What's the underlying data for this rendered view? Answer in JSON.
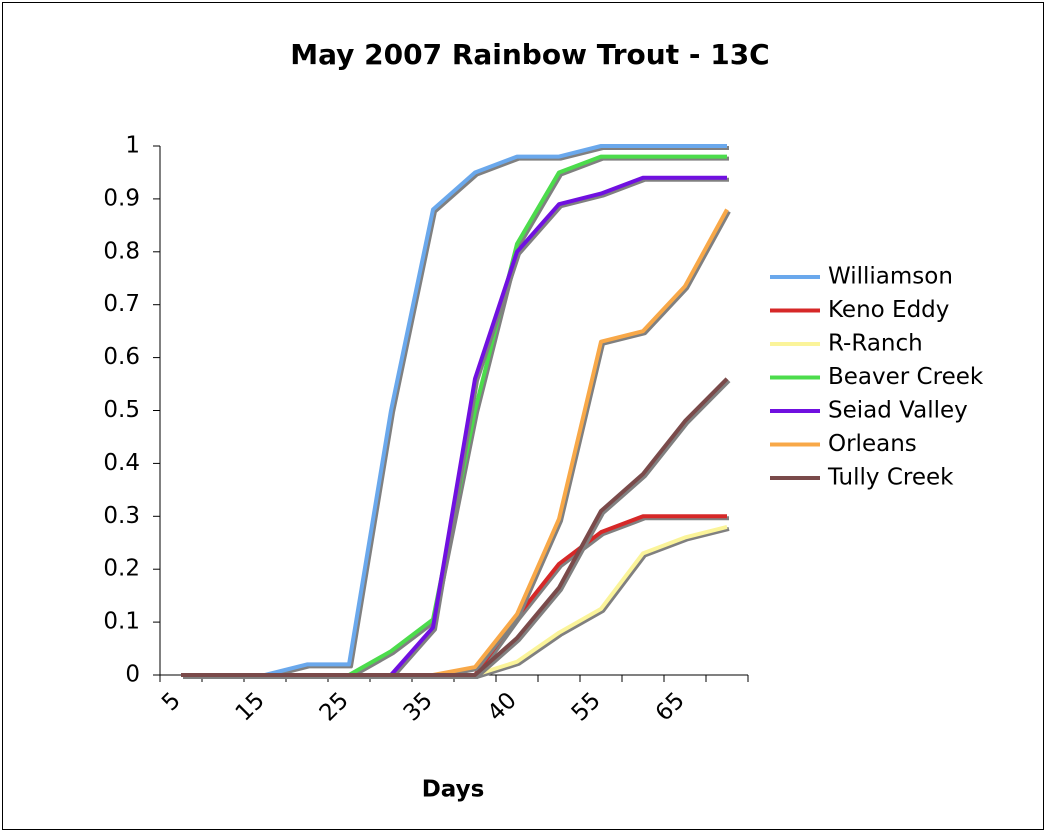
{
  "chart_data": {
    "type": "line",
    "title": "May 2007 Rainbow Trout - 13C",
    "x_label": "Days",
    "categories": [
      "5",
      null,
      "15",
      null,
      "25",
      null,
      "35",
      null,
      "40",
      null,
      "55",
      null,
      "65",
      null
    ],
    "series": [
      {
        "name": "Williamson",
        "color": "#6aa8ec",
        "values": [
          0,
          0,
          0,
          0.02,
          0.02,
          0.5,
          0.88,
          0.95,
          0.98,
          0.98,
          1,
          1,
          1,
          1
        ]
      },
      {
        "name": "Keno Eddy",
        "color": "#d62828",
        "values": [
          0,
          0,
          0,
          0,
          0,
          0,
          0,
          0,
          0.11,
          0.21,
          0.27,
          0.3,
          0.3,
          0.3
        ]
      },
      {
        "name": "R-Ranch",
        "color": "#fbf49a",
        "values": [
          0,
          0,
          0,
          0,
          0,
          0,
          0,
          0,
          0.025,
          0.08,
          0.125,
          0.23,
          0.26,
          0.28
        ]
      },
      {
        "name": "Beaver Creek",
        "color": "#4cdc4c",
        "values": [
          null,
          null,
          null,
          null,
          0,
          0.045,
          0.105,
          0.5,
          0.815,
          0.95,
          0.98,
          0.98,
          0.98,
          0.98
        ]
      },
      {
        "name": "Seiad Valley",
        "color": "#7010e0",
        "values": [
          null,
          null,
          null,
          null,
          null,
          0,
          0.09,
          0.56,
          0.8,
          0.89,
          0.91,
          0.94,
          0.94,
          0.94
        ]
      },
      {
        "name": "Orleans",
        "color": "#f8a848",
        "values": [
          0,
          0,
          0,
          0,
          0,
          0,
          0,
          0.015,
          0.115,
          0.295,
          0.63,
          0.65,
          0.735,
          0.88
        ]
      },
      {
        "name": "Tully Creek",
        "color": "#7a4a4a",
        "values": [
          0,
          0,
          0,
          0,
          0,
          0,
          0,
          0,
          0.07,
          0.165,
          0.31,
          0.38,
          0.48,
          0.56
        ]
      }
    ],
    "ylim": [
      0,
      1
    ],
    "yticks": [
      0,
      0.1,
      0.2,
      0.3,
      0.4,
      0.5,
      0.6,
      0.7,
      0.8,
      0.9,
      1
    ],
    "grid": false,
    "legend": "right"
  }
}
